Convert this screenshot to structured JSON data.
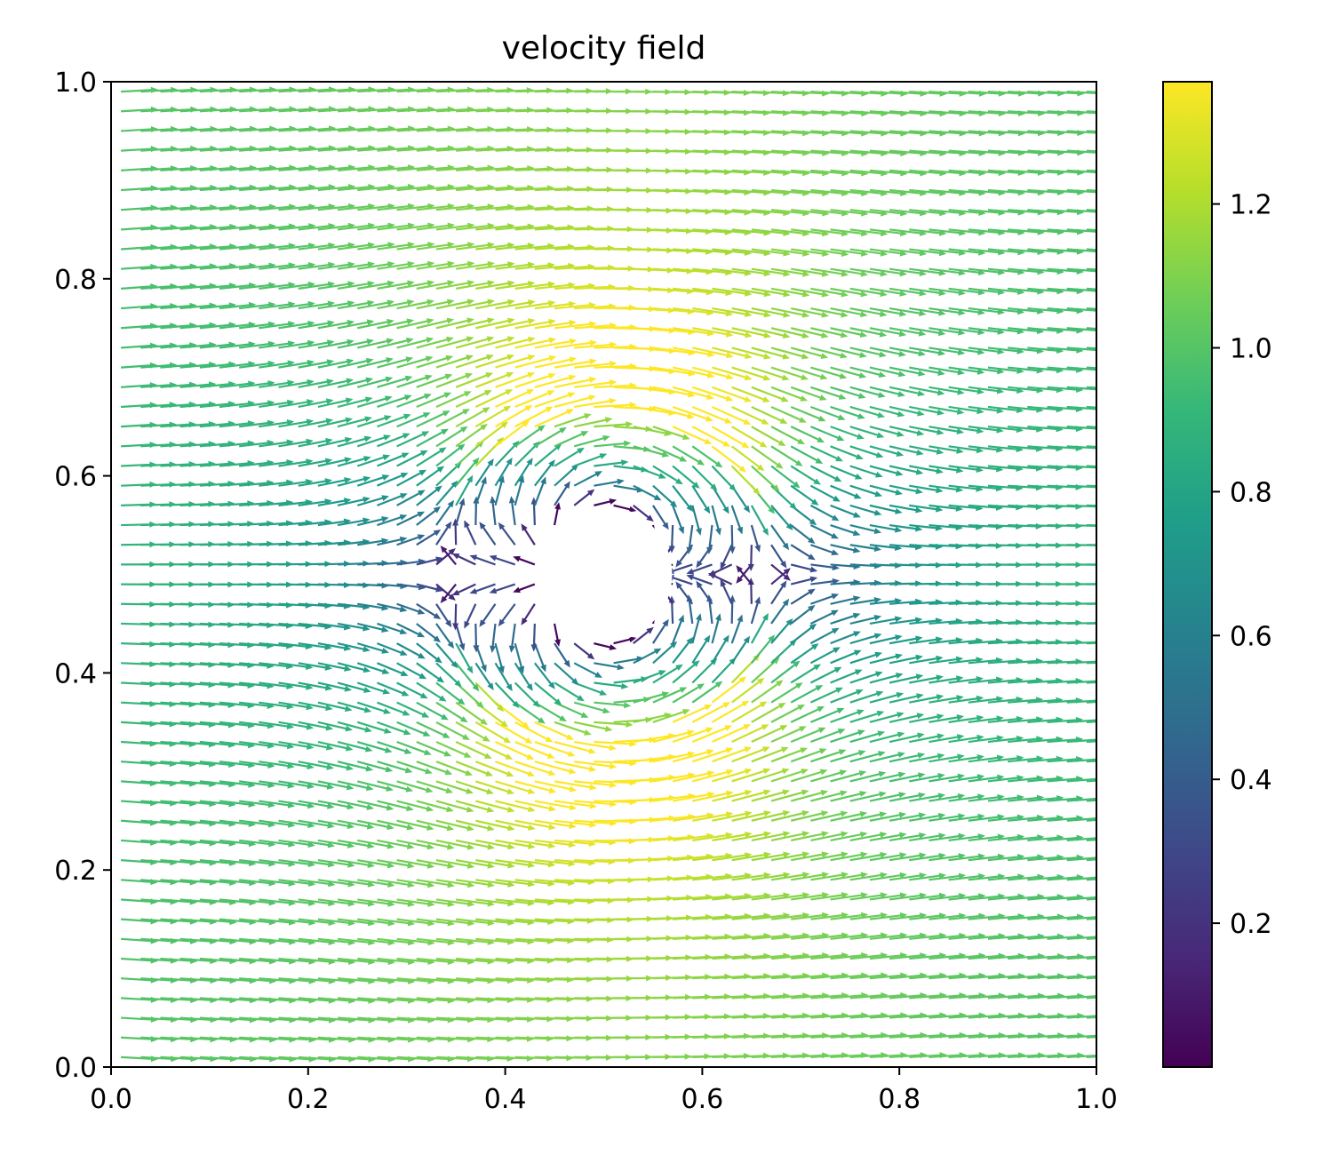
{
  "chart_data": {
    "type": "quiver",
    "title": "velocity field",
    "xlabel": "",
    "ylabel": "",
    "xlim": [
      0.0,
      1.0
    ],
    "ylim": [
      0.0,
      1.0
    ],
    "x_ticks": [
      "0.0",
      "0.2",
      "0.4",
      "0.6",
      "0.8",
      "1.0"
    ],
    "y_ticks": [
      "0.0",
      "0.2",
      "0.4",
      "0.6",
      "0.8",
      "1.0"
    ],
    "grid": false,
    "colormap": "viridis",
    "obstacle": {
      "type": "circle",
      "center": [
        0.5,
        0.5
      ],
      "radius": 0.07
    },
    "free_stream_speed": 1.0,
    "colorbar": {
      "range": [
        0.0,
        1.37
      ],
      "ticks": [
        "0.2",
        "0.4",
        "0.6",
        "0.8",
        "1.0",
        "1.2"
      ],
      "tick_values": [
        0.2,
        0.4,
        0.6,
        0.8,
        1.0,
        1.2
      ],
      "colors": [
        "#440154",
        "#482878",
        "#3e4989",
        "#31688e",
        "#26828e",
        "#1f9e89",
        "#35b779",
        "#6ece58",
        "#b5de2b",
        "#fde725"
      ]
    }
  }
}
